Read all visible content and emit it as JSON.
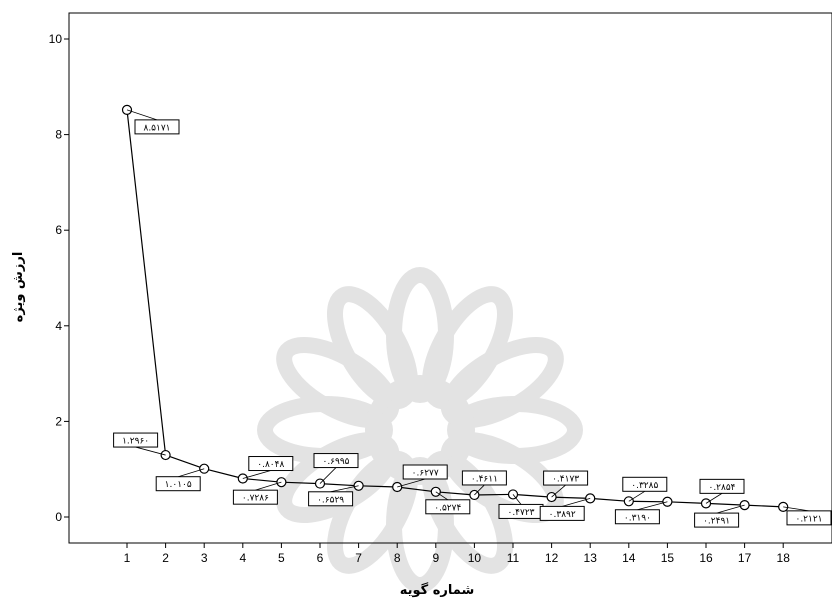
{
  "chart_data": {
    "type": "line",
    "xlabel": "شماره گویه",
    "ylabel": "ارزش ویژه",
    "xlim": [
      0,
      19
    ],
    "ylim": [
      -0.5,
      10.5
    ],
    "x_ticks": [
      1,
      2,
      3,
      4,
      5,
      6,
      7,
      8,
      9,
      10,
      11,
      12,
      13,
      14,
      15,
      16,
      17,
      18
    ],
    "y_ticks": [
      0,
      2,
      4,
      6,
      8,
      10
    ],
    "grid": false,
    "series": [
      {
        "x": [
          1,
          2,
          3,
          4,
          5,
          6,
          7,
          8,
          9,
          10,
          11,
          12,
          13,
          14,
          15,
          16,
          17,
          18
        ],
        "y": [
          8.5171,
          1.296,
          1.0105,
          0.8048,
          0.7286,
          0.6995,
          0.6529,
          0.6277,
          0.5274,
          0.4611,
          0.4723,
          0.4173,
          0.3892,
          0.3285,
          0.319,
          0.2854,
          0.2491,
          0.2121
        ]
      }
    ],
    "data_labels": [
      {
        "x": 1,
        "text": "۸.۵۱۷۱"
      },
      {
        "x": 2,
        "text": "۱.۲۹۶۰"
      },
      {
        "x": 3,
        "text": "۱.۰۱۰۵"
      },
      {
        "x": 4,
        "text": "۰.۸۰۴۸"
      },
      {
        "x": 5,
        "text": "۰.۷۲۸۶"
      },
      {
        "x": 6,
        "text": "۰.۶۹۹۵"
      },
      {
        "x": 7,
        "text": "۰.۶۵۲۹"
      },
      {
        "x": 8,
        "text": "۰.۶۲۷۷"
      },
      {
        "x": 9,
        "text": "۰.۵۲۷۴"
      },
      {
        "x": 10,
        "text": "۰.۴۶۱۱"
      },
      {
        "x": 11,
        "text": "۰.۴۷۲۳"
      },
      {
        "x": 12,
        "text": "۰.۴۱۷۳"
      },
      {
        "x": 13,
        "text": "۰.۳۸۹۲"
      },
      {
        "x": 14,
        "text": "۰.۳۲۸۵"
      },
      {
        "x": 15,
        "text": "۰.۳۱۹۰"
      },
      {
        "x": 16,
        "text": "۰.۲۸۵۴"
      },
      {
        "x": 17,
        "text": "۰.۲۴۹۱"
      },
      {
        "x": 18,
        "text": "۰.۲۱۲۱"
      }
    ],
    "colors": {
      "line": "#000000",
      "marker": "#000000",
      "axis": "#000000",
      "watermark": "#e3e3e3"
    }
  }
}
